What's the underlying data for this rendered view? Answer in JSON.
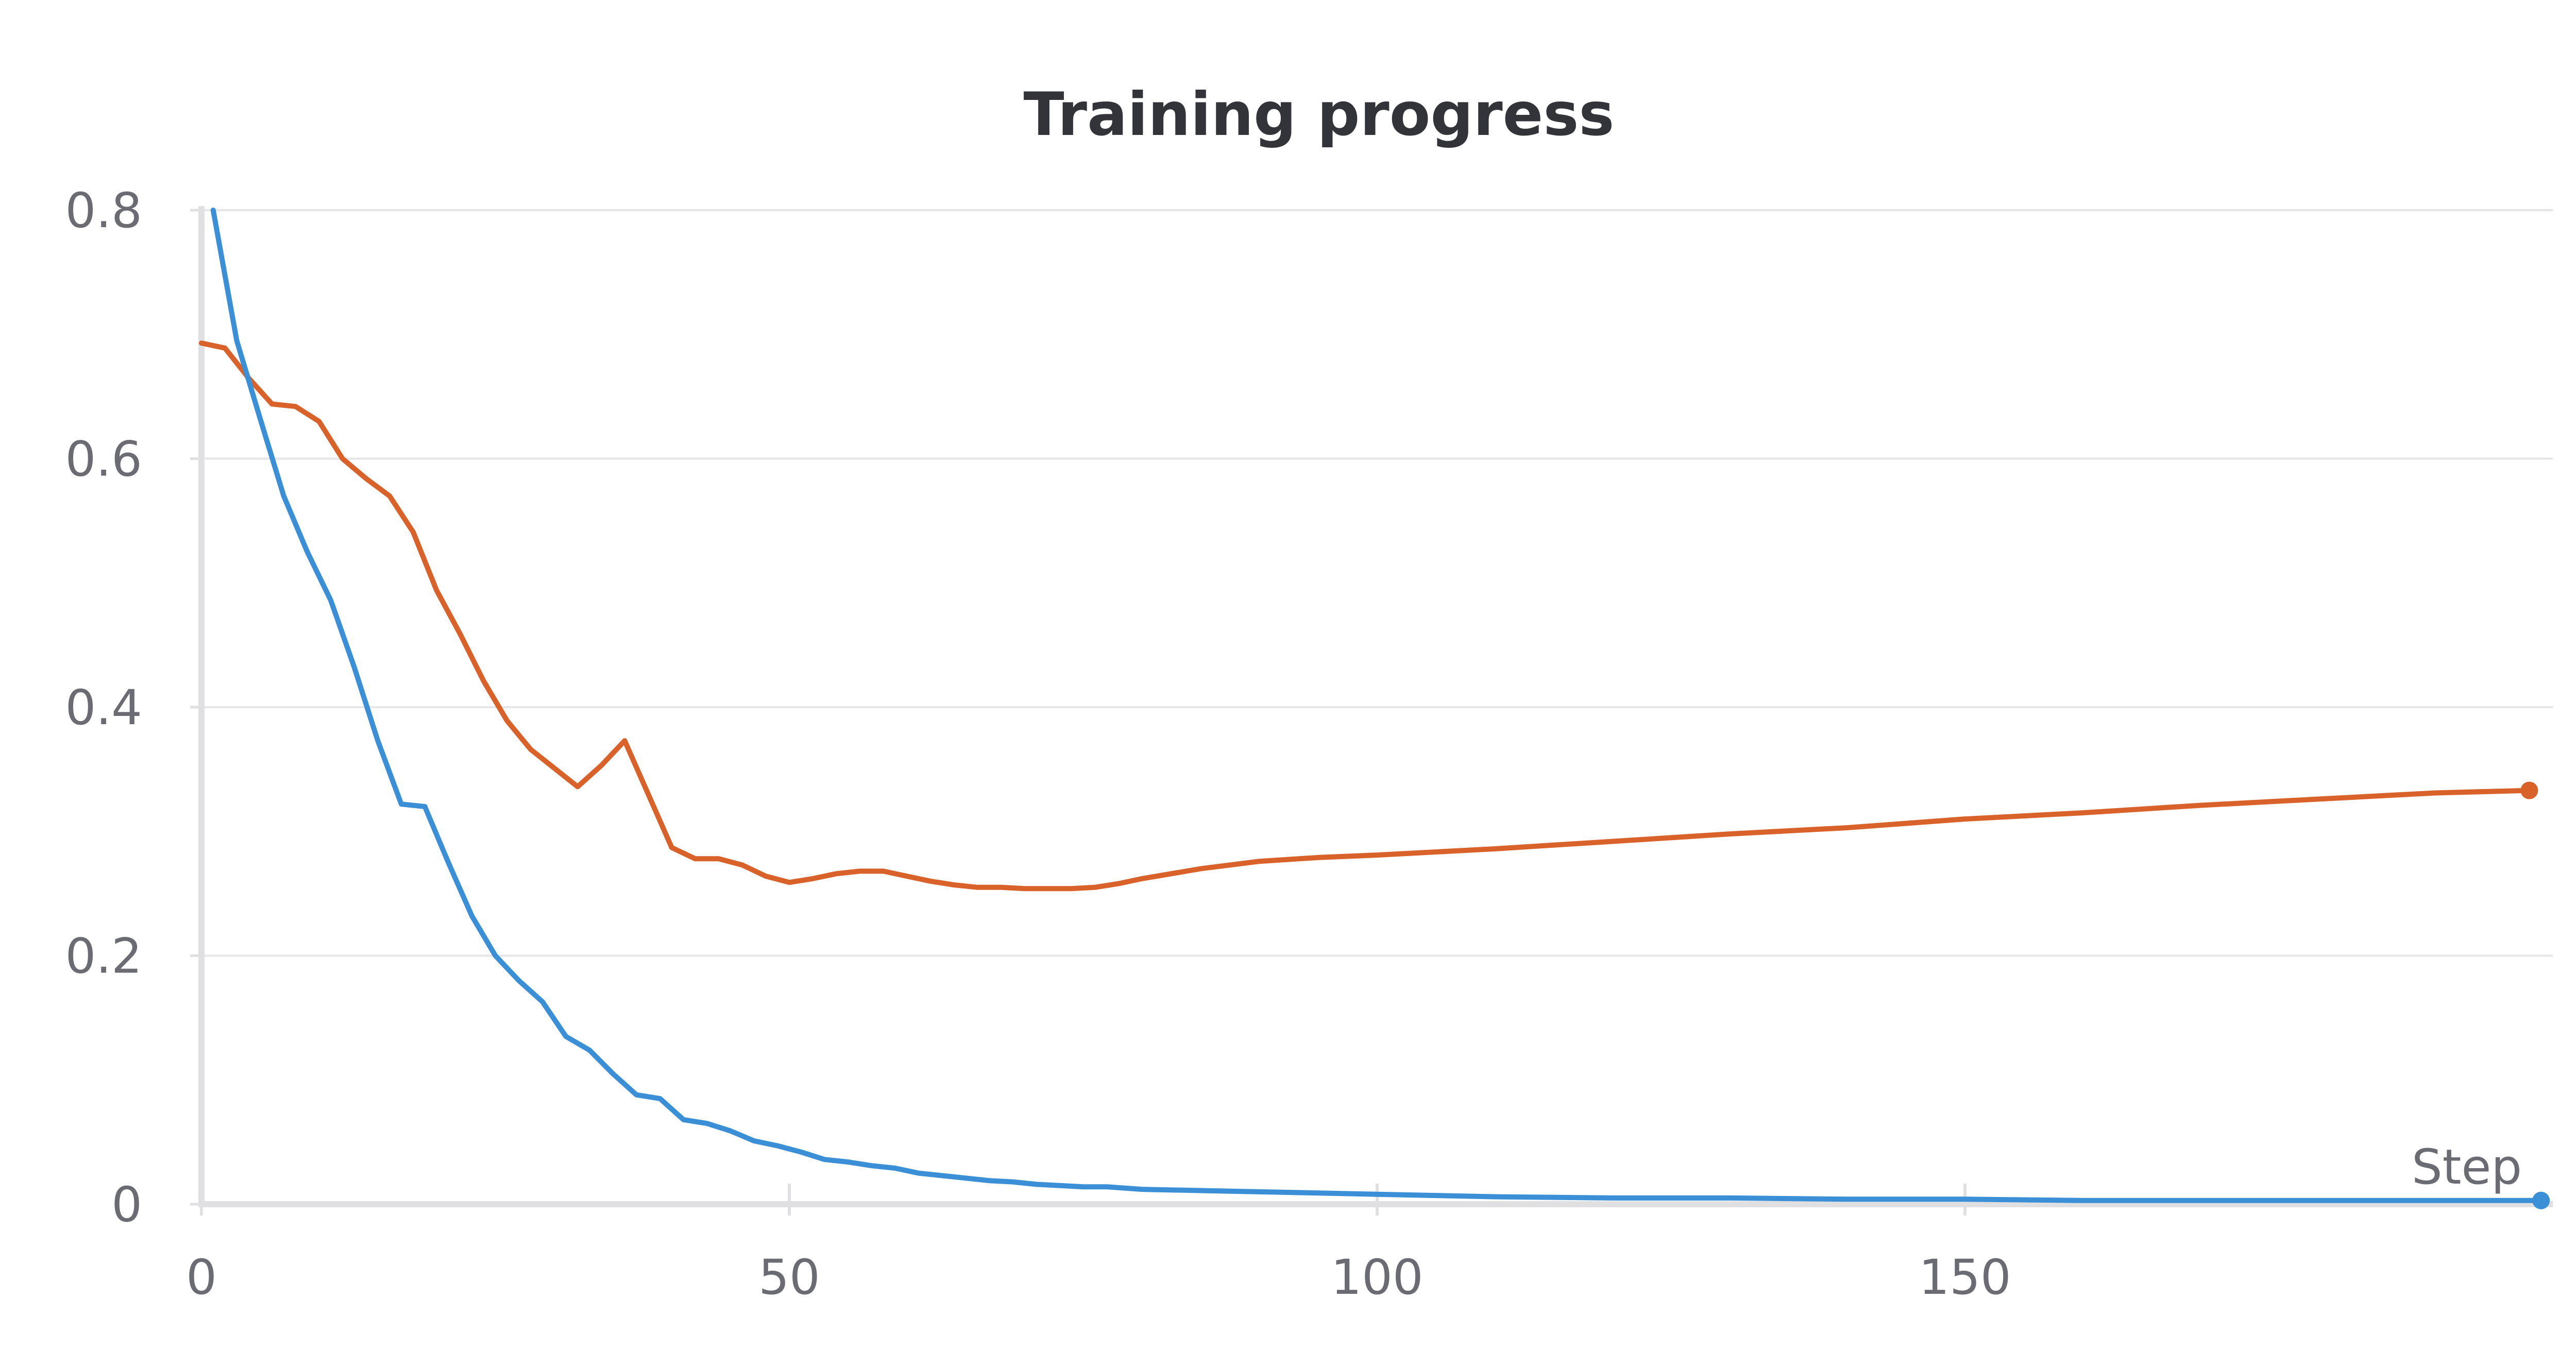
{
  "chart_data": {
    "type": "line",
    "title": "Training progress",
    "xlabel": "Step",
    "ylabel": "",
    "xlim": [
      0,
      200
    ],
    "ylim": [
      0,
      0.8
    ],
    "x_ticks": [
      "0",
      "50",
      "100",
      "150"
    ],
    "y_ticks": [
      "0",
      "0.2",
      "0.4",
      "0.6",
      "0.8"
    ],
    "grid": true,
    "legend": "none",
    "series": [
      {
        "color": "#d9622b",
        "x": [
          0,
          2,
          4,
          6,
          8,
          10,
          12,
          14,
          16,
          18,
          20,
          22,
          24,
          26,
          28,
          30,
          32,
          34,
          36,
          38,
          40,
          42,
          44,
          46,
          48,
          50,
          52,
          54,
          56,
          58,
          60,
          62,
          64,
          66,
          68,
          70,
          72,
          74,
          76,
          78,
          80,
          85,
          90,
          95,
          100,
          110,
          120,
          130,
          140,
          150,
          160,
          170,
          180,
          190,
          198
        ],
        "y": [
          0.693,
          0.689,
          0.665,
          0.644,
          0.642,
          0.63,
          0.6,
          0.584,
          0.57,
          0.541,
          0.494,
          0.459,
          0.421,
          0.389,
          0.366,
          0.351,
          0.336,
          0.353,
          0.373,
          0.33,
          0.287,
          0.278,
          0.278,
          0.273,
          0.264,
          0.259,
          0.262,
          0.266,
          0.268,
          0.268,
          0.264,
          0.26,
          0.257,
          0.255,
          0.255,
          0.254,
          0.254,
          0.254,
          0.255,
          0.258,
          0.262,
          0.27,
          0.276,
          0.279,
          0.281,
          0.286,
          0.292,
          0.298,
          0.303,
          0.31,
          0.315,
          0.321,
          0.326,
          0.331,
          0.333
        ]
      },
      {
        "color": "#3a8fd6",
        "x": [
          1,
          3,
          5,
          7,
          9,
          11,
          13,
          15,
          17,
          19,
          21,
          23,
          25,
          27,
          29,
          31,
          33,
          35,
          37,
          39,
          41,
          43,
          45,
          47,
          49,
          51,
          53,
          55,
          57,
          59,
          61,
          63,
          65,
          67,
          69,
          71,
          73,
          75,
          77,
          80,
          85,
          90,
          95,
          100,
          110,
          120,
          130,
          140,
          150,
          160,
          170,
          180,
          190,
          199
        ],
        "y": [
          0.8,
          0.695,
          0.632,
          0.57,
          0.525,
          0.486,
          0.432,
          0.373,
          0.322,
          0.32,
          0.275,
          0.232,
          0.2,
          0.18,
          0.163,
          0.135,
          0.124,
          0.105,
          0.088,
          0.085,
          0.068,
          0.065,
          0.059,
          0.051,
          0.047,
          0.042,
          0.036,
          0.034,
          0.031,
          0.029,
          0.025,
          0.023,
          0.021,
          0.019,
          0.018,
          0.016,
          0.015,
          0.014,
          0.014,
          0.012,
          0.011,
          0.01,
          0.009,
          0.008,
          0.006,
          0.005,
          0.005,
          0.004,
          0.004,
          0.003,
          0.003,
          0.003,
          0.003,
          0.003
        ]
      }
    ]
  }
}
